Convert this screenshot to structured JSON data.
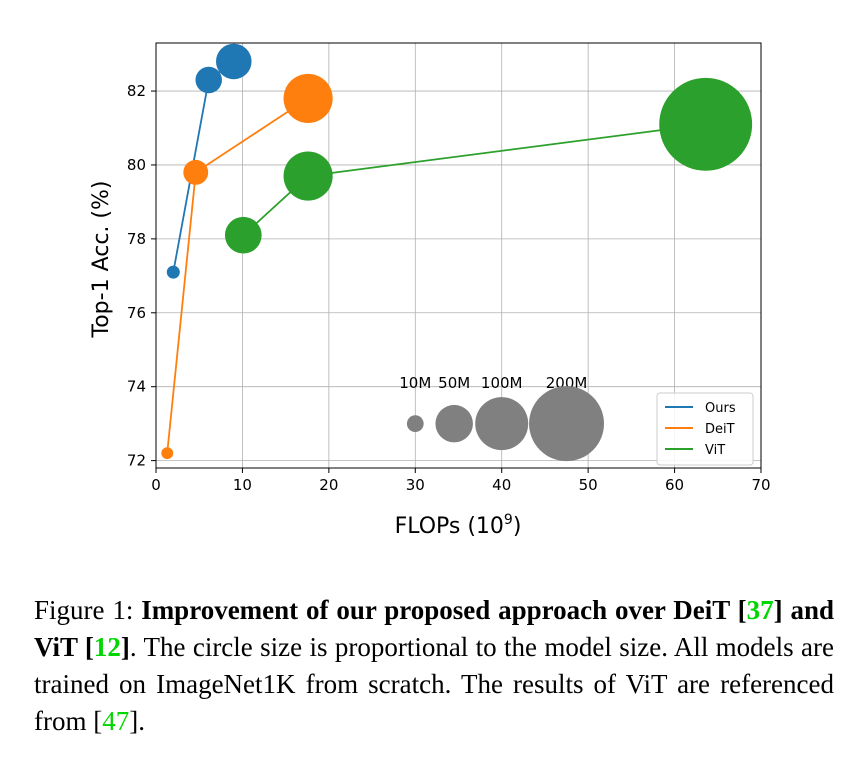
{
  "chart_data": {
    "type": "scatter",
    "xlabel": "FLOPs (10",
    "xlabel_sup": "9",
    "xlabel_end": ")",
    "ylabel": "Top-1 Acc. (%)",
    "xlim": [
      0,
      70
    ],
    "ylim": [
      71.8,
      83.3
    ],
    "xticks": [
      0,
      10,
      20,
      30,
      40,
      50,
      60,
      70
    ],
    "yticks": [
      72,
      74,
      76,
      78,
      80,
      82
    ],
    "grid": true,
    "legend_position": "lower-right",
    "series": [
      {
        "name": "Ours",
        "color": "#1f77b4",
        "points": [
          {
            "x": 2.0,
            "y": 77.1,
            "params": 6
          },
          {
            "x": 6.1,
            "y": 82.3,
            "params": 25
          },
          {
            "x": 9.0,
            "y": 82.8,
            "params": 45
          }
        ]
      },
      {
        "name": "DeiT",
        "color": "#ff7f0e",
        "points": [
          {
            "x": 1.3,
            "y": 72.2,
            "params": 5
          },
          {
            "x": 4.6,
            "y": 79.8,
            "params": 22
          },
          {
            "x": 17.6,
            "y": 81.8,
            "params": 86
          }
        ]
      },
      {
        "name": "ViT",
        "color": "#2ca02c",
        "points": [
          {
            "x": 10.1,
            "y": 78.1,
            "params": 48
          },
          {
            "x": 17.6,
            "y": 79.7,
            "params": 86
          },
          {
            "x": 63.6,
            "y": 81.1,
            "params": 307
          }
        ]
      }
    ],
    "size_legend": {
      "color": "#808080",
      "y": 73.0,
      "items": [
        {
          "label": "10M",
          "x": 30.0,
          "params": 10
        },
        {
          "label": "50M",
          "x": 34.5,
          "params": 50
        },
        {
          "label": "100M",
          "x": 40.0,
          "params": 100
        },
        {
          "label": "200M",
          "x": 47.5,
          "params": 200
        }
      ]
    }
  },
  "caption": {
    "prefix": "Figure 1: ",
    "bold_1": "Improvement of our proposed approach over DeiT [",
    "ref_1": "37",
    "bold_2": "] and ViT [",
    "ref_2": "12",
    "bold_3": "]",
    "text_1": ". The circle size is proportional to the model size. All models are trained on ImageNet1K from scratch. The results of ViT are referenced from [",
    "ref_3": "47",
    "text_2": "]."
  }
}
